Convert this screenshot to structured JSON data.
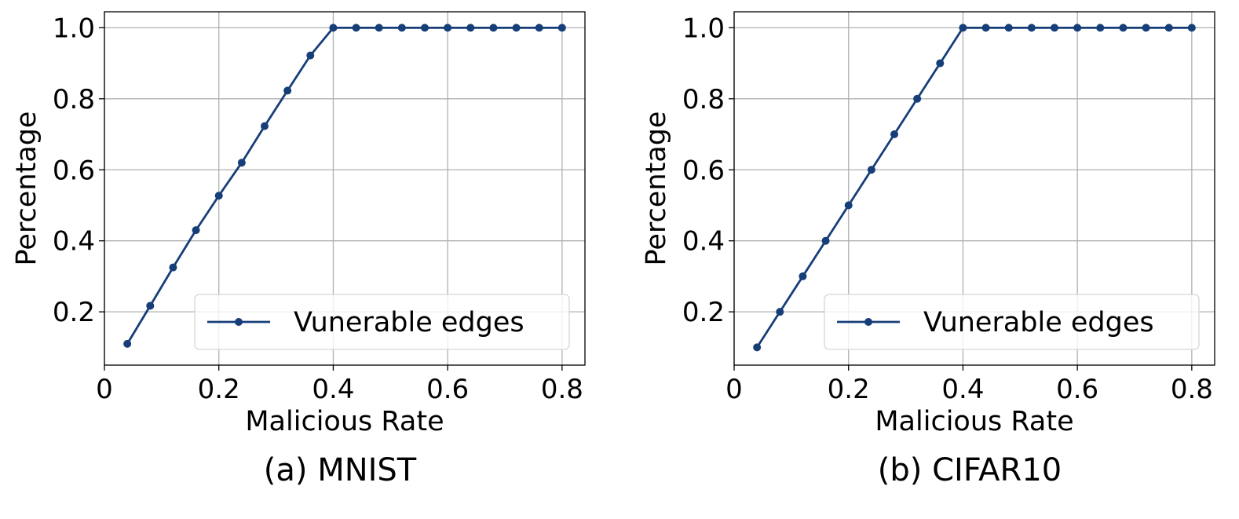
{
  "chart_data": [
    {
      "type": "line",
      "caption": "(a) MNIST",
      "xlabel": "Malicious Rate",
      "ylabel": "Percentage",
      "xlim": [
        0,
        0.84
      ],
      "ylim": [
        0.05,
        1.045
      ],
      "xticks": [
        0,
        0.2,
        0.4,
        0.6,
        0.8
      ],
      "xtick_labels": [
        "0",
        "0.2",
        "0.4",
        "0.6",
        "0.8"
      ],
      "yticks": [
        0.2,
        0.4,
        0.6,
        0.8,
        1.0
      ],
      "ytick_labels": [
        "0.2",
        "0.4",
        "0.6",
        "0.8",
        "1.0"
      ],
      "grid": true,
      "legend_position": "lower-right",
      "series": [
        {
          "name": "Vunerable edges",
          "color": "#163e79",
          "marker": "circle",
          "x": [
            0.04,
            0.08,
            0.12,
            0.16,
            0.2,
            0.24,
            0.28,
            0.32,
            0.36,
            0.4,
            0.44,
            0.48,
            0.52,
            0.56,
            0.6,
            0.64,
            0.68,
            0.72,
            0.76,
            0.8
          ],
          "y": [
            0.11,
            0.217,
            0.325,
            0.43,
            0.527,
            0.62,
            0.723,
            0.823,
            0.922,
            1.0,
            1.0,
            1.0,
            1.0,
            1.0,
            1.0,
            1.0,
            1.0,
            1.0,
            1.0,
            1.0
          ]
        }
      ]
    },
    {
      "type": "line",
      "caption": "(b) CIFAR10",
      "xlabel": "Malicious Rate",
      "ylabel": "Percentage",
      "xlim": [
        0,
        0.84
      ],
      "ylim": [
        0.05,
        1.045
      ],
      "xticks": [
        0,
        0.2,
        0.4,
        0.6,
        0.8
      ],
      "xtick_labels": [
        "0",
        "0.2",
        "0.4",
        "0.6",
        "0.8"
      ],
      "yticks": [
        0.2,
        0.4,
        0.6,
        0.8,
        1.0
      ],
      "ytick_labels": [
        "0.2",
        "0.4",
        "0.6",
        "0.8",
        "1.0"
      ],
      "grid": true,
      "legend_position": "lower-right",
      "series": [
        {
          "name": "Vunerable edges",
          "color": "#163e79",
          "marker": "circle",
          "x": [
            0.04,
            0.08,
            0.12,
            0.16,
            0.2,
            0.24,
            0.28,
            0.32,
            0.36,
            0.4,
            0.44,
            0.48,
            0.52,
            0.56,
            0.6,
            0.64,
            0.68,
            0.72,
            0.76,
            0.8
          ],
          "y": [
            0.1,
            0.2,
            0.3,
            0.4,
            0.5,
            0.6,
            0.7,
            0.8,
            0.9,
            1.0,
            1.0,
            1.0,
            1.0,
            1.0,
            1.0,
            1.0,
            1.0,
            1.0,
            1.0,
            1.0
          ]
        }
      ]
    }
  ]
}
